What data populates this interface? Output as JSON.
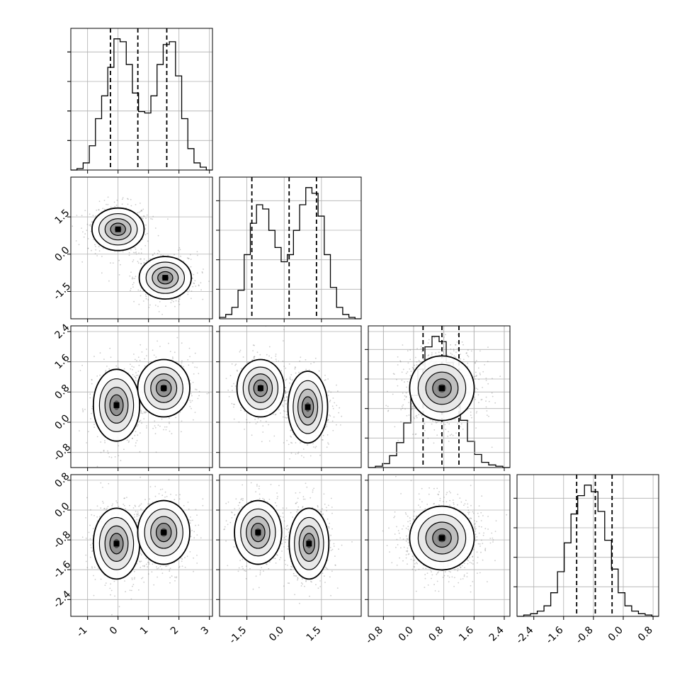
{
  "chart_data": {
    "type": "corner",
    "parameters": [
      "",
      "",
      "",
      ""
    ],
    "colors": {
      "line": "#000000",
      "grid": "#b0b0b0",
      "points": "#6e6e6e"
    },
    "grid": true,
    "axes": {
      "ranges": [
        [
          -1.55,
          3.1
        ],
        [
          -2.6,
          3.1
        ],
        [
          -1.2,
          2.55
        ],
        [
          -2.85,
          0.95
        ]
      ],
      "ticks": [
        [
          "-1",
          "0",
          "1",
          "2",
          "3"
        ],
        [
          "-1.5",
          "0.0",
          "1.5"
        ],
        [
          "-0.8",
          "0.0",
          "0.8",
          "1.6",
          "2.4"
        ],
        [
          "-2.4",
          "-1.6",
          "-0.8",
          "0.0",
          "0.8"
        ]
      ],
      "tick_values": [
        [
          -1,
          0,
          1,
          2,
          3
        ],
        [
          -1.5,
          0.0,
          1.5
        ],
        [
          -0.8,
          0.0,
          0.8,
          1.6,
          2.4
        ],
        [
          -2.4,
          -1.6,
          -0.8,
          0.0,
          0.8
        ]
      ]
    },
    "histograms": [
      {
        "param": 0,
        "bins": [
          -1.55,
          3.1
        ],
        "counts": [
          0,
          1,
          5,
          17,
          36,
          52,
          72,
          92,
          90,
          74,
          54,
          41,
          40,
          52,
          74,
          88,
          90,
          66,
          36,
          15,
          5,
          2,
          0
        ],
        "quantiles": [
          -0.25,
          0.65,
          1.6
        ],
        "max": 92
      },
      {
        "param": 1,
        "bins": [
          -2.6,
          3.1
        ],
        "counts": [
          1,
          3,
          8,
          20,
          45,
          67,
          80,
          77,
          62,
          50,
          40,
          45,
          62,
          80,
          92,
          88,
          72,
          45,
          22,
          8,
          3,
          1,
          0
        ],
        "quantiles": [
          -1.3,
          0.2,
          1.3
        ],
        "max": 92
      },
      {
        "param": 2,
        "bins": [
          -1.2,
          2.55
        ],
        "counts": [
          0,
          1,
          3,
          9,
          19,
          34,
          55,
          75,
          92,
          100,
          96,
          80,
          56,
          36,
          20,
          10,
          4,
          2,
          1,
          0
        ],
        "quantiles": [
          0.25,
          0.75,
          1.2
        ],
        "max": 100
      },
      {
        "param": 3,
        "bins": [
          -2.85,
          0.95
        ],
        "counts": [
          0,
          1,
          2,
          4,
          8,
          18,
          34,
          56,
          78,
          92,
          100,
          95,
          80,
          58,
          36,
          18,
          8,
          4,
          2,
          1,
          0
        ],
        "quantiles": [
          -1.25,
          -0.75,
          -0.3
        ],
        "max": 100
      }
    ],
    "joint": [
      {
        "row": 1,
        "col": 0,
        "modes": [
          {
            "x": 0.0,
            "y": 1.0,
            "sx": 0.45,
            "sy": 0.45,
            "r": 0
          },
          {
            "x": 1.55,
            "y": -0.95,
            "sx": 0.45,
            "sy": 0.45,
            "r": 0
          }
        ]
      },
      {
        "row": 2,
        "col": 0,
        "modes": [
          {
            "x": -0.05,
            "y": 0.45,
            "sx": 0.4,
            "sy": 0.5,
            "r": 0
          },
          {
            "x": 1.5,
            "y": 0.9,
            "sx": 0.45,
            "sy": 0.4,
            "r": 0
          }
        ]
      },
      {
        "row": 2,
        "col": 1,
        "modes": [
          {
            "x": -0.95,
            "y": 0.9,
            "sx": 0.5,
            "sy": 0.4,
            "r": 0
          },
          {
            "x": 0.95,
            "y": 0.4,
            "sx": 0.42,
            "sy": 0.5,
            "r": 0
          }
        ]
      },
      {
        "row": 2,
        "col": 2,
        "modes": []
      },
      {
        "row": 3,
        "col": 0,
        "modes": [
          {
            "x": -0.05,
            "y": -0.9,
            "sx": 0.4,
            "sy": 0.5,
            "r": 0
          },
          {
            "x": 1.5,
            "y": -0.6,
            "sx": 0.45,
            "sy": 0.45,
            "r": 0
          }
        ]
      },
      {
        "row": 3,
        "col": 1,
        "modes": [
          {
            "x": -1.05,
            "y": -0.6,
            "sx": 0.5,
            "sy": 0.45,
            "r": 0
          },
          {
            "x": 1.0,
            "y": -0.9,
            "sx": 0.42,
            "sy": 0.5,
            "r": 0
          }
        ]
      },
      {
        "row": 3,
        "col": 2,
        "modes": [
          {
            "x": 0.75,
            "y": -0.75,
            "sx": 0.45,
            "sy": 0.45,
            "r": 0
          }
        ]
      }
    ]
  }
}
